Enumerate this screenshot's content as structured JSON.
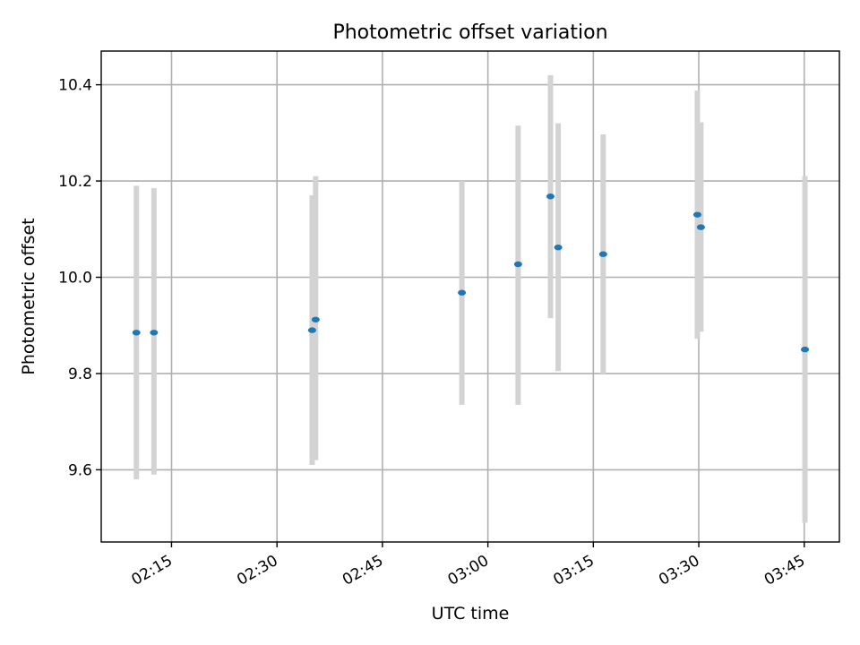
{
  "chart_data": {
    "type": "scatter",
    "title": "Photometric offset variation",
    "xlabel": "UTC time",
    "ylabel": "Photometric offset",
    "x_ticks": [
      "02:15",
      "02:30",
      "02:45",
      "03:00",
      "03:15",
      "03:30",
      "03:45"
    ],
    "y_ticks": [
      "9.6",
      "9.8",
      "10.0",
      "10.2",
      "10.4"
    ],
    "xlim": [
      "02:05",
      "03:50"
    ],
    "ylim": [
      9.45,
      10.47
    ],
    "grid": true,
    "legend": "none",
    "series": [
      {
        "marker": "point",
        "errorbar": "vertical",
        "points": [
          {
            "x": "02:10",
            "y": 9.885,
            "err_low": 9.58,
            "err_high": 10.19
          },
          {
            "x": "02:12.5",
            "y": 9.885,
            "err_low": 9.59,
            "err_high": 10.185
          },
          {
            "x": "02:35",
            "y": 9.89,
            "err_low": 9.61,
            "err_high": 10.17
          },
          {
            "x": "02:35.5",
            "y": 9.912,
            "err_low": 9.62,
            "err_high": 10.21
          },
          {
            "x": "02:56.3",
            "y": 9.968,
            "err_low": 9.735,
            "err_high": 10.2
          },
          {
            "x": "03:04.3",
            "y": 10.027,
            "err_low": 9.735,
            "err_high": 10.315
          },
          {
            "x": "03:08.9",
            "y": 10.168,
            "err_low": 9.915,
            "err_high": 10.42
          },
          {
            "x": "03:10",
            "y": 10.062,
            "err_low": 9.805,
            "err_high": 10.32
          },
          {
            "x": "03:16.4",
            "y": 10.048,
            "err_low": 9.8,
            "err_high": 10.297
          },
          {
            "x": "03:29.8",
            "y": 10.13,
            "err_low": 9.872,
            "err_high": 10.388
          },
          {
            "x": "03:30.3",
            "y": 10.104,
            "err_low": 9.887,
            "err_high": 10.322
          },
          {
            "x": "03:45.1",
            "y": 9.85,
            "err_low": 9.49,
            "err_high": 10.21
          }
        ]
      }
    ]
  },
  "colors": {
    "marker": "#1f77b4",
    "errorbar": "#d3d3d3",
    "grid": "#b0b0b0",
    "frame": "#000000"
  }
}
